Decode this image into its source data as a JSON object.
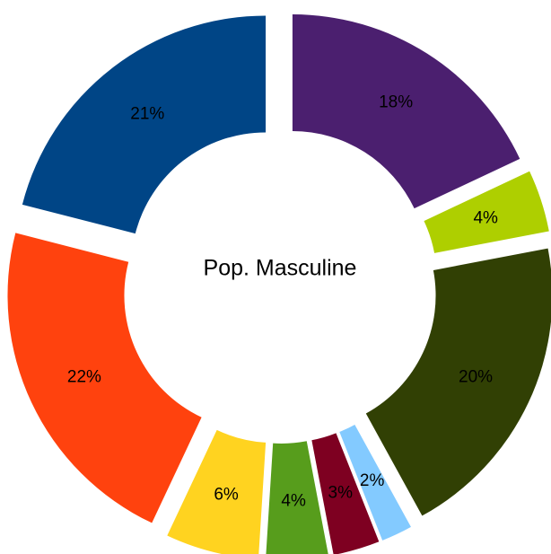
{
  "chart_data": {
    "type": "pie",
    "title": "Pop. Masculine",
    "categories": [
      null,
      null,
      null,
      null,
      null,
      null,
      null,
      null,
      null
    ],
    "values": [
      18,
      4,
      20,
      2,
      3,
      4,
      6,
      22,
      21
    ],
    "value_labels": [
      "18%",
      "4%",
      "20%",
      "2%",
      "3%",
      "4%",
      "6%",
      "22%",
      "21%"
    ],
    "colors": [
      "#4b1f6f",
      "#aecf00",
      "#314004",
      "#83caff",
      "#7e0021",
      "#579d1c",
      "#ffd320",
      "#ff420e",
      "#004586"
    ]
  }
}
